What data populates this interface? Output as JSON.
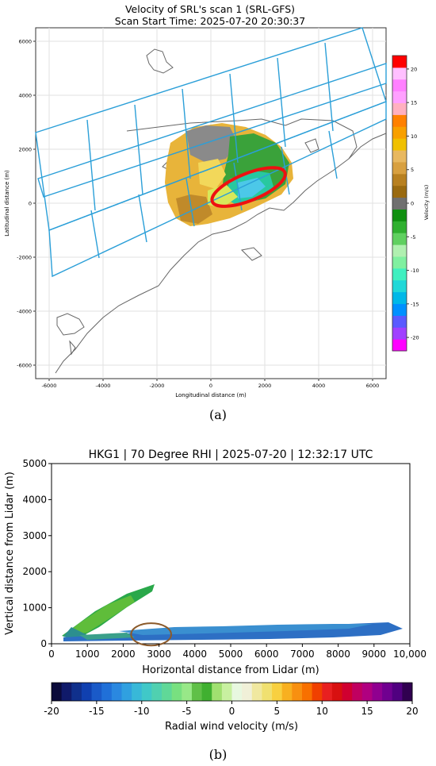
{
  "chart_data": [
    {
      "type": "heatmap",
      "title": "Velocity of SRL's scan 1 (SRL-GFS)",
      "subtitle": "Scan Start Time: 2025-07-20 20:30:37",
      "xlabel": "Longitudinal distance (m)",
      "ylabel": "Latitudinal distance (m)",
      "xlim": [
        -6500,
        6500
      ],
      "ylim": [
        -6500,
        6500
      ],
      "xticks": [
        -6000,
        -4000,
        -2000,
        0,
        2000,
        4000,
        6000
      ],
      "yticks": [
        -6000,
        -4000,
        -2000,
        0,
        2000,
        4000,
        6000
      ],
      "grid": true,
      "colorbar": {
        "label": "Velocity (m/s)",
        "range": [
          -22,
          22
        ],
        "ticks": [
          -20,
          -15,
          -10,
          -5,
          0,
          5,
          10,
          15,
          20
        ]
      },
      "annotation": {
        "shape": "ellipse",
        "color": "#ee1111",
        "cx": 1400,
        "cy": 600,
        "rx": 1450,
        "ry": 500,
        "angle_deg": 22
      },
      "panel_label": "(a)"
    },
    {
      "type": "heatmap",
      "title": "HKG1 | 70 Degree RHI | 2025-07-20 | 12:32:17 UTC",
      "xlabel": "Horizontal distance from Lidar (m)",
      "ylabel": "Vertical distance from Lidar (m)",
      "xlim": [
        0,
        10000
      ],
      "ylim": [
        0,
        5000
      ],
      "xticks": [
        0,
        1000,
        2000,
        3000,
        4000,
        5000,
        6000,
        7000,
        8000,
        9000,
        10000
      ],
      "xtick_labels": [
        "0",
        "1000",
        "2000",
        "3000",
        "4000",
        "5000",
        "6000",
        "7000",
        "8000",
        "9000",
        "10,000"
      ],
      "yticks": [
        0,
        1000,
        2000,
        3000,
        4000,
        5000
      ],
      "grid": false,
      "colorbar": {
        "label": "Radial wind velocity (m/s)",
        "range": [
          -20,
          20
        ],
        "ticks": [
          -20,
          -15,
          -10,
          -5,
          0,
          5,
          10,
          15,
          20
        ]
      },
      "annotation": {
        "shape": "ellipse",
        "color": "#8b5a2b",
        "cx": 2780,
        "cy": 260,
        "rx": 560,
        "ry": 310
      },
      "panel_label": "(b)"
    }
  ]
}
